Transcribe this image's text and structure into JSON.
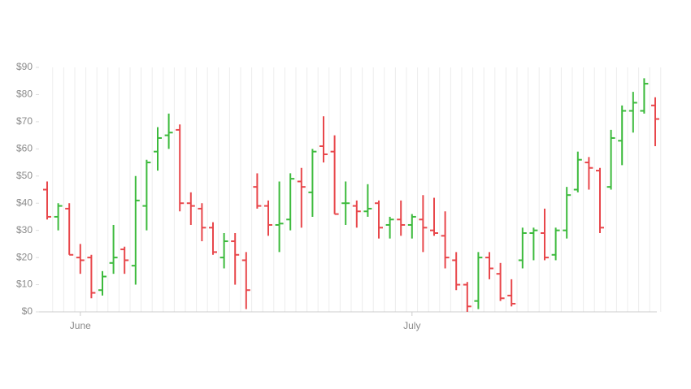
{
  "chart_data": {
    "type": "ohlc",
    "categories": [
      null,
      null,
      null,
      "June",
      null,
      null,
      null,
      null,
      null,
      null,
      null,
      null,
      null,
      null,
      null,
      null,
      null,
      null,
      null,
      null,
      null,
      null,
      null,
      null,
      null,
      null,
      null,
      null,
      null,
      null,
      null,
      null,
      null,
      "July",
      null,
      null,
      null,
      null,
      null,
      null,
      null,
      null,
      null,
      null,
      null,
      null,
      null,
      null,
      null,
      null,
      null,
      null,
      null,
      null,
      null,
      null
    ],
    "open": [
      45,
      35,
      38,
      20,
      20,
      8,
      18,
      23,
      17,
      39,
      59,
      65,
      67,
      40,
      38,
      31,
      20,
      26,
      19,
      46,
      39,
      32,
      34,
      48,
      44,
      61,
      59,
      40,
      39,
      37,
      40,
      32,
      34,
      32,
      34,
      30,
      28,
      19,
      10,
      4,
      20,
      14,
      6,
      19,
      29,
      29,
      21,
      30,
      45,
      55,
      52,
      46,
      63,
      74,
      74,
      76
    ],
    "high": [
      48,
      40,
      40,
      25,
      21,
      15,
      32,
      24,
      50,
      56,
      68,
      73,
      69,
      44,
      40,
      33,
      29,
      29,
      22,
      51,
      41,
      48,
      51,
      53,
      60,
      72,
      65,
      48,
      41,
      47,
      41,
      35,
      41,
      36,
      43,
      42,
      37,
      22,
      11,
      22,
      22,
      18,
      12,
      31,
      31,
      38,
      31,
      46,
      59,
      57,
      53,
      67,
      76,
      81,
      86,
      79
    ],
    "low": [
      34,
      30,
      21,
      14,
      5,
      6,
      14,
      14,
      10,
      30,
      52,
      60,
      37,
      32,
      26,
      21,
      16,
      10,
      1,
      38,
      28,
      22,
      30,
      31,
      35,
      55,
      36,
      32,
      31,
      35,
      27,
      27,
      28,
      27,
      22,
      28,
      16,
      8,
      0,
      1,
      12,
      4,
      2,
      16,
      19,
      19,
      19,
      27,
      44,
      45,
      29,
      45,
      54,
      66,
      73,
      61
    ],
    "close": [
      35,
      39,
      21,
      19,
      7,
      13,
      20,
      19,
      41,
      55,
      64,
      66,
      40,
      39,
      31,
      22,
      26,
      21,
      8,
      39,
      32,
      32.5,
      49,
      46,
      59,
      58,
      36,
      40,
      37,
      38,
      31,
      34,
      32,
      35,
      31,
      29,
      20,
      10,
      2,
      20,
      16,
      5,
      3,
      29,
      30,
      20,
      30,
      43,
      56,
      53,
      31,
      64,
      74,
      77,
      84,
      71
    ],
    "up_color": "#3cba3c",
    "down_color": "#e8474b",
    "ylim": [
      0,
      90
    ],
    "yticks": [
      {
        "value": 0,
        "label": "$0"
      },
      {
        "value": 10,
        "label": "$10"
      },
      {
        "value": 20,
        "label": "$20"
      },
      {
        "value": 30,
        "label": "$30"
      },
      {
        "value": 40,
        "label": "$40"
      },
      {
        "value": 50,
        "label": "$50"
      },
      {
        "value": 60,
        "label": "$60"
      },
      {
        "value": 70,
        "label": "$70"
      },
      {
        "value": 80,
        "label": "$80"
      },
      {
        "value": 90,
        "label": "$90"
      }
    ],
    "grid": true
  }
}
